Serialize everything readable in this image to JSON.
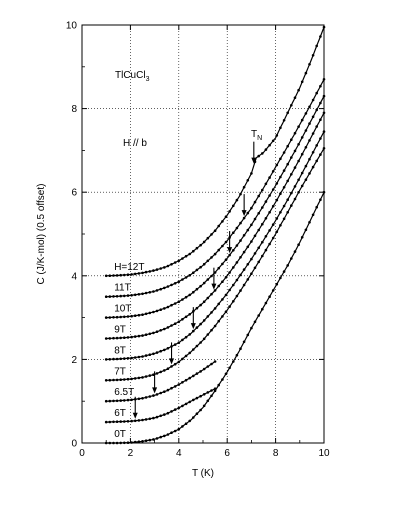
{
  "chart_data": {
    "type": "line",
    "title": "",
    "xlabel": "T (K)",
    "ylabel": "C (J/K-mol) (0.5 offset)",
    "xlim": [
      0,
      10
    ],
    "ylim": [
      0,
      10
    ],
    "x_ticks": [
      0,
      2,
      4,
      6,
      8,
      10
    ],
    "y_ticks": [
      0,
      2,
      4,
      6,
      8,
      10
    ],
    "grid": "dotted",
    "annotations": {
      "compound": "TlCuCl",
      "compound_sub": "3",
      "field_direction": "H // b",
      "tn_label": "T",
      "tn_sub": "N"
    },
    "series": [
      {
        "label": "0T",
        "offset": 0.0,
        "x": [
          1.0,
          1.5,
          2.0,
          2.5,
          3.0,
          3.5,
          4.0,
          4.5,
          5.0,
          5.5,
          6.0,
          6.5,
          7.0,
          7.5,
          8.0,
          8.5,
          9.0,
          9.5,
          10.0
        ],
        "y": [
          0.0,
          0.0,
          0.01,
          0.04,
          0.09,
          0.19,
          0.33,
          0.55,
          0.85,
          1.25,
          1.7,
          2.2,
          2.75,
          3.25,
          3.75,
          4.25,
          4.8,
          5.4,
          6.0
        ]
      },
      {
        "label": "6T",
        "offset": 0.5,
        "x": [
          1.0,
          1.5,
          2.0,
          2.5,
          3.0,
          3.5,
          4.0,
          4.5,
          5.0,
          5.5
        ],
        "y": [
          0.5,
          0.51,
          0.52,
          0.55,
          0.6,
          0.7,
          0.84,
          1.0,
          1.15,
          1.3
        ],
        "arrow_x": 2.2
      },
      {
        "label": "6.5T",
        "offset": 1.0,
        "x": [
          1.0,
          1.5,
          2.0,
          2.5,
          3.0,
          3.5,
          4.0,
          4.5,
          5.0,
          5.5
        ],
        "y": [
          1.0,
          1.01,
          1.03,
          1.07,
          1.14,
          1.25,
          1.4,
          1.57,
          1.75,
          1.95
        ],
        "arrow_x": 3.0
      },
      {
        "label": "7T",
        "offset": 1.5,
        "x": [
          1.0,
          1.5,
          2.0,
          2.5,
          3.0,
          3.5,
          4.0,
          4.5,
          5.0,
          5.5,
          6.0,
          6.5,
          7.0,
          7.5,
          8.0,
          8.5,
          9.0,
          9.5,
          10.0
        ],
        "y": [
          1.5,
          1.51,
          1.53,
          1.57,
          1.64,
          1.76,
          1.94,
          2.18,
          2.46,
          2.8,
          3.18,
          3.6,
          4.05,
          4.52,
          5.0,
          5.52,
          6.05,
          6.55,
          7.05
        ],
        "arrow_x": 3.7
      },
      {
        "label": "8T",
        "offset": 2.0,
        "x": [
          1.0,
          1.5,
          2.0,
          2.5,
          3.0,
          3.5,
          4.0,
          4.5,
          5.0,
          5.5,
          6.0,
          6.5,
          7.0,
          7.5,
          8.0,
          8.5,
          9.0,
          9.5,
          10.0
        ],
        "y": [
          2.0,
          2.01,
          2.03,
          2.07,
          2.14,
          2.25,
          2.4,
          2.62,
          2.9,
          3.22,
          3.58,
          3.98,
          4.4,
          4.85,
          5.32,
          5.82,
          6.35,
          6.9,
          7.45
        ],
        "arrow_x": 4.6
      },
      {
        "label": "9T",
        "offset": 2.5,
        "x": [
          1.0,
          1.5,
          2.0,
          2.5,
          3.0,
          3.5,
          4.0,
          4.5,
          5.0,
          5.5,
          6.0,
          6.5,
          7.0,
          7.5,
          8.0,
          8.5,
          9.0,
          9.5,
          10.0
        ],
        "y": [
          2.5,
          2.51,
          2.53,
          2.57,
          2.64,
          2.75,
          2.9,
          3.1,
          3.35,
          3.65,
          4.0,
          4.4,
          4.82,
          5.28,
          5.76,
          6.27,
          6.8,
          7.35,
          7.9
        ],
        "arrow_x": 5.45
      },
      {
        "label": "10T",
        "offset": 3.0,
        "x": [
          1.0,
          1.5,
          2.0,
          2.5,
          3.0,
          3.5,
          4.0,
          4.5,
          5.0,
          5.5,
          6.0,
          6.5,
          7.0,
          7.5,
          8.0,
          8.5,
          9.0,
          9.5,
          10.0
        ],
        "y": [
          3.0,
          3.01,
          3.03,
          3.07,
          3.14,
          3.24,
          3.38,
          3.56,
          3.8,
          4.08,
          4.42,
          4.8,
          5.22,
          5.68,
          6.16,
          6.67,
          7.2,
          7.75,
          8.3
        ],
        "arrow_x": 6.1
      },
      {
        "label": "11T",
        "offset": 3.5,
        "x": [
          1.0,
          1.5,
          2.0,
          2.5,
          3.0,
          3.5,
          4.0,
          4.5,
          5.0,
          5.5,
          6.0,
          6.5,
          7.0,
          7.5,
          8.0,
          8.5,
          9.0,
          9.5,
          10.0
        ],
        "y": [
          3.5,
          3.51,
          3.53,
          3.57,
          3.63,
          3.73,
          3.86,
          4.03,
          4.25,
          4.52,
          4.84,
          5.22,
          5.62,
          6.1,
          6.6,
          7.1,
          7.62,
          8.15,
          8.7
        ],
        "arrow_x": 6.7
      },
      {
        "label": "H=12T",
        "offset": 4.0,
        "x": [
          1.0,
          1.5,
          2.0,
          2.5,
          3.0,
          3.5,
          4.0,
          4.5,
          5.0,
          5.5,
          6.0,
          6.5,
          7.0,
          7.2,
          7.5,
          8.0,
          8.5,
          9.0,
          9.5,
          10.0
        ],
        "y": [
          4.0,
          4.01,
          4.03,
          4.07,
          4.13,
          4.22,
          4.36,
          4.54,
          4.78,
          5.08,
          5.45,
          5.9,
          6.45,
          6.82,
          6.95,
          7.3,
          7.9,
          8.5,
          9.2,
          9.95
        ],
        "arrow_x": 7.1
      }
    ]
  }
}
